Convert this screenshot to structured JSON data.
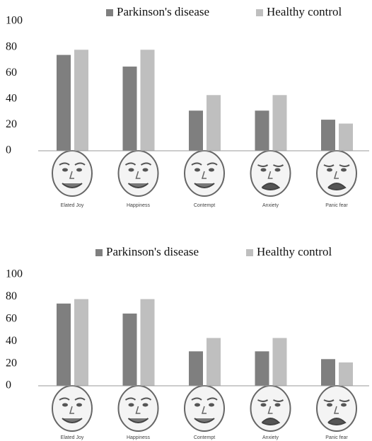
{
  "chart_data": [
    {
      "type": "bar",
      "categories": [
        "Elated Joy",
        "Happiness",
        "Contempt",
        "Anxiety",
        "Panic fear"
      ],
      "series": [
        {
          "name": "Parkinson's disease",
          "color": "#7f7f7f",
          "values": [
            74,
            65,
            31,
            31,
            24
          ]
        },
        {
          "name": "Healthy control",
          "color": "#bfbfbf",
          "values": [
            78,
            78,
            43,
            43,
            21
          ]
        }
      ],
      "ylim": [
        0,
        100
      ],
      "yticks": [
        0,
        20,
        40,
        60,
        80,
        100
      ],
      "grid": false,
      "legend": "top"
    },
    {
      "type": "bar",
      "categories": [
        "Elated Joy",
        "Happiness",
        "Contempt",
        "Anxiety",
        "Panic fear"
      ],
      "series": [
        {
          "name": "Parkinson's disease",
          "color": "#7f7f7f",
          "values": [
            74,
            65,
            31,
            31,
            24
          ]
        },
        {
          "name": "Healthy control",
          "color": "#bfbfbf",
          "values": [
            78,
            78,
            43,
            43,
            21
          ]
        }
      ],
      "ylim": [
        0,
        100
      ],
      "yticks": [
        0,
        20,
        40,
        60,
        80,
        100
      ],
      "grid": false,
      "legend": "top"
    }
  ]
}
